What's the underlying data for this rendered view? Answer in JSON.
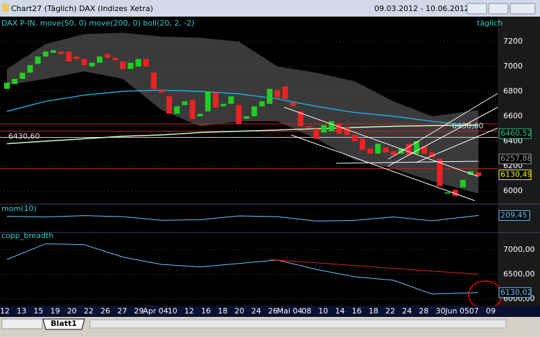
{
  "window": {
    "title": "Chart27 (Täglich)  DAX (Indizes Xetra)",
    "date_range": "09.03.2012 - 10.06.2012"
  },
  "header": {
    "indicators": "DAX P-IN. move(50, 0) move(200, 0) boll(20, 2, -2)",
    "interval": "täglich"
  },
  "price_panel": {
    "type": "candlestick",
    "ylim": [
      5906,
      7389
    ],
    "yticks": [
      7200,
      7000,
      6800,
      6600,
      6400,
      6200,
      6000
    ],
    "open": [
      6820,
      6860,
      6900,
      6950,
      7020,
      7080,
      7110,
      7120,
      7120,
      7080,
      7060,
      7000,
      7030,
      7100,
      7070,
      7040,
      6980,
      7000,
      7060,
      6950,
      6810,
      6760,
      6620,
      6690,
      6730,
      6600,
      6640,
      6790,
      6680,
      6700,
      6690,
      6580,
      6600,
      6680,
      6700,
      6810,
      6840,
      6710,
      6640,
      6520,
      6500,
      6470,
      6480,
      6540,
      6510,
      6450,
      6420,
      6340,
      6300,
      6350,
      6320,
      6300,
      6380,
      6300,
      6360,
      6310,
      6260,
      5980,
      6010,
      6030,
      6130,
      6150
    ],
    "close": [
      6870,
      6900,
      6950,
      7010,
      7080,
      7120,
      7130,
      7100,
      7040,
      7060,
      7010,
      7030,
      7080,
      7070,
      7050,
      6980,
      7030,
      7060,
      7000,
      6820,
      6790,
      6620,
      6680,
      6720,
      6580,
      6620,
      6800,
      6670,
      6700,
      6760,
      6540,
      6600,
      6680,
      6720,
      6820,
      6750,
      6740,
      6680,
      6520,
      6510,
      6420,
      6530,
      6560,
      6460,
      6450,
      6400,
      6330,
      6300,
      6380,
      6310,
      6290,
      6340,
      6290,
      6400,
      6300,
      6270,
      6040,
      5990,
      5960,
      6090,
      6160,
      6120
    ],
    "overlay_x": [
      0,
      5,
      10,
      15,
      20,
      25,
      30,
      35,
      40,
      45,
      50,
      55,
      61
    ],
    "boll_upper": [
      6980,
      7180,
      7260,
      7270,
      7240,
      7230,
      7200,
      7000,
      6950,
      6880,
      6720,
      6600,
      6650
    ],
    "boll_lower": [
      6850,
      6900,
      6960,
      6900,
      6650,
      6520,
      6560,
      6560,
      6420,
      6250,
      6180,
      6080,
      5980
    ],
    "ma50": [
      6640,
      6720,
      6770,
      6800,
      6810,
      6800,
      6780,
      6740,
      6680,
      6630,
      6600,
      6560,
      6520
    ],
    "ma200": [
      6380,
      6400,
      6420,
      6440,
      6450,
      6470,
      6480,
      6490,
      6500,
      6510,
      6520,
      6525,
      6530
    ],
    "level": {
      "value": 6430.6,
      "label": "6430,60"
    },
    "red_levels": [
      6540,
      6480,
      6180
    ],
    "tags": [
      {
        "value": 6460.52,
        "label": "6460,52",
        "color": "#33cc88"
      },
      {
        "value": 6257.88,
        "label": "6257,88",
        "color": "#999999"
      },
      {
        "value": 6130.49,
        "label": "6130,49",
        "color": "#ffff00"
      }
    ]
  },
  "mom_panel": {
    "label": "mom(10)",
    "ylim": [
      -1000,
      1000
    ],
    "values": [
      150,
      100,
      200,
      120,
      -150,
      -100,
      180,
      120,
      -200,
      -150,
      100,
      -180,
      209.45
    ],
    "tag": {
      "value": 209.45,
      "label": "209,45"
    }
  },
  "breadth_panel": {
    "label": "copp_breadth",
    "ylim": [
      5889,
      7319
    ],
    "yticks": [
      {
        "value": 7000,
        "label": "7000,00"
      },
      {
        "value": 6500,
        "label": "6500,00"
      },
      {
        "value": 6000,
        "label": "6000,00"
      }
    ],
    "values": [
      6800,
      7120,
      7100,
      6850,
      6700,
      6650,
      6720,
      6790,
      6600,
      6450,
      6380,
      6100,
      6130
    ],
    "trend_x": [
      34,
      61
    ],
    "trend": [
      6800,
      6500
    ],
    "tag": {
      "value": 6130.02,
      "label": "6130,02"
    }
  },
  "x_labels": [
    "12",
    "13",
    "15",
    "19",
    "20",
    "22",
    "26",
    "27",
    "29",
    "Apr 04",
    "10",
    "12",
    "16",
    "18",
    "20",
    "24",
    "26",
    "Mai 04",
    "08",
    "10",
    "14",
    "16",
    "18",
    "22",
    "24",
    "28",
    "30",
    "Jun 05",
    "07",
    "09"
  ],
  "tabs": [
    "Blatt1"
  ]
}
